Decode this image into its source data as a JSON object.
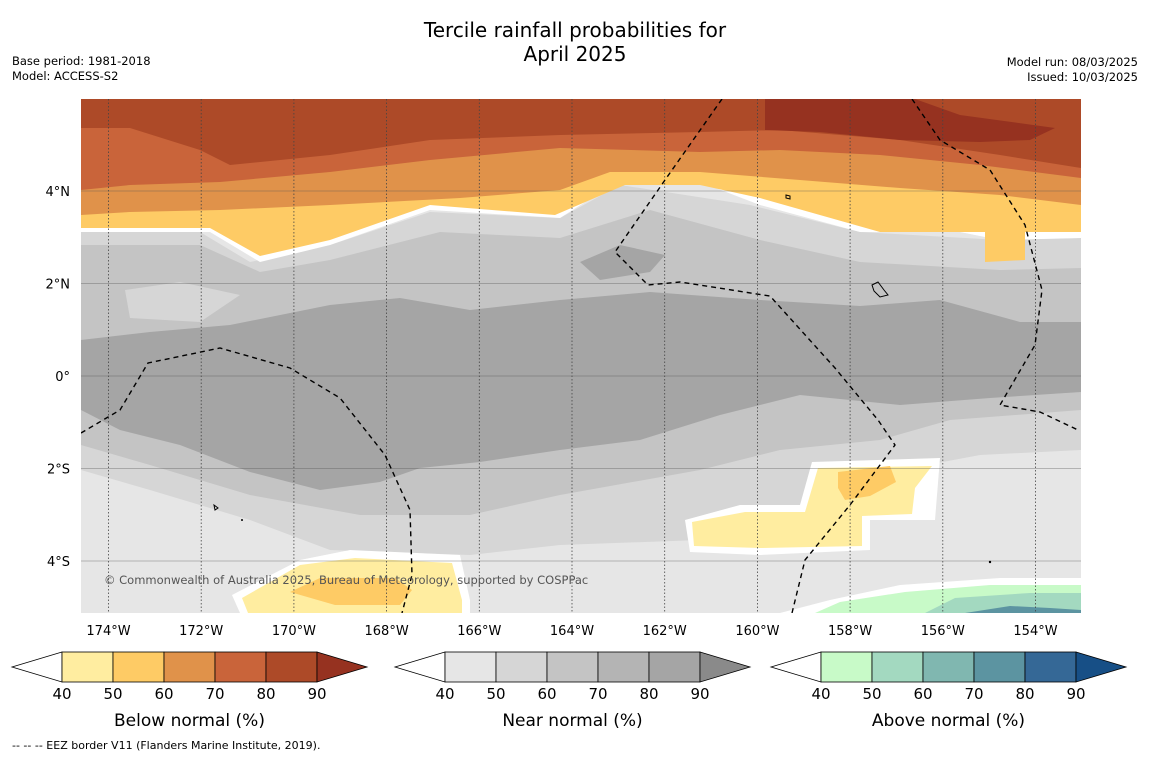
{
  "header": {
    "title_line1": "Tercile rainfall probabilities for",
    "title_line2": "April 2025",
    "base_period": "Base period: 1981-2018",
    "model": "Model: ACCESS-S2",
    "model_run": "Model run: 08/03/2025",
    "issued": "Issued: 10/03/2025"
  },
  "map": {
    "copyright": "© Commonwealth of Australia 2025, Bureau of Meteorology, supported by COSPPac",
    "lon_ticks": [
      "174°W",
      "172°W",
      "170°W",
      "168°W",
      "166°W",
      "164°W",
      "162°W",
      "160°W",
      "158°W",
      "156°W",
      "154°W"
    ],
    "lat_ticks": [
      "4°N",
      "2°N",
      "0°",
      "2°S",
      "4°S"
    ]
  },
  "colorbars": [
    {
      "label": "Below normal (%)",
      "ticks": [
        "40",
        "50",
        "60",
        "70",
        "80",
        "90"
      ],
      "colors": [
        "#ffeda0",
        "#fecb65",
        "#e0924a",
        "#c9643a",
        "#ad4a28",
        "#963220"
      ]
    },
    {
      "label": "Near normal (%)",
      "ticks": [
        "40",
        "50",
        "60",
        "70",
        "80",
        "90"
      ],
      "colors": [
        "#e6e6e6",
        "#d6d6d6",
        "#c4c4c4",
        "#b4b4b4",
        "#a5a5a5",
        "#8a8a8a"
      ]
    },
    {
      "label": "Above normal (%)",
      "ticks": [
        "40",
        "50",
        "60",
        "70",
        "80",
        "90"
      ],
      "colors": [
        "#c8fac8",
        "#a3d9c0",
        "#80b7b0",
        "#5c94a1",
        "#356896",
        "#174f86"
      ]
    }
  ],
  "footer": {
    "legend": "-- -- -- EEZ border V11 (Flanders Marine Institute, 2019)."
  }
}
